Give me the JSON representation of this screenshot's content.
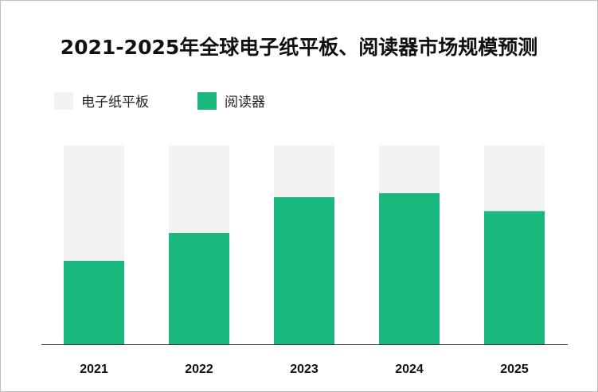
{
  "chart_data": {
    "type": "bar",
    "stacked_percent": true,
    "title": "2021-2025年全球电子纸平板、阅读器市场规模预测",
    "categories": [
      "2021",
      "2022",
      "2023",
      "2024",
      "2025"
    ],
    "series": [
      {
        "name": "阅读器",
        "values": [
          42,
          56,
          74,
          76,
          67
        ],
        "color": "#1ab87c"
      },
      {
        "name": "电子纸平板",
        "values": [
          58,
          44,
          26,
          24,
          33
        ],
        "color": "#f2f2f2"
      }
    ],
    "ylim": [
      0,
      100
    ],
    "grid": false,
    "legend_position": "top-left"
  },
  "legend": {
    "item_0_label": "电子纸平板",
    "item_1_label": "阅读器"
  }
}
